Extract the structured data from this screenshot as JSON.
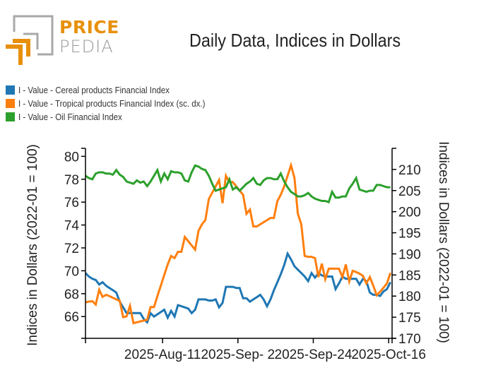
{
  "logo": {
    "line1": "PRICE",
    "line2": "PEDIA",
    "accent_color": "#e8900c",
    "gray_color": "#9a9a9a"
  },
  "title": "Daily Data, Indices in Dollars",
  "legend": [
    {
      "label": "I - Value - Cereal products Financial Index",
      "color": "#1f77b4"
    },
    {
      "label": "I - Value - Tropical products Financial Index (sc. dx.)",
      "color": "#ff7f0e"
    },
    {
      "label": "I - Value - Oil Financial Index",
      "color": "#2ca02c"
    }
  ],
  "chart_data": {
    "type": "line",
    "title": "Daily Data, Indices in Dollars",
    "ylabel": "Indices in Dollars (2022-01 = 100)",
    "y2label": "Indices in Dollars (2022-01 = 100)",
    "ylim": [
      64.1,
      80.7
    ],
    "y2lim": [
      170,
      215
    ],
    "yticks": [
      66,
      68,
      70,
      72,
      74,
      76,
      78,
      80
    ],
    "y2ticks": [
      170,
      175,
      180,
      185,
      190,
      195,
      200,
      205,
      210
    ],
    "xlim_days": [
      0,
      89.5
    ],
    "xticks": [
      {
        "day": 0,
        "label": ""
      },
      {
        "day": 22.5,
        "label": "2025-Aug-11"
      },
      {
        "day": 44.5,
        "label": "2025-Sep- 2"
      },
      {
        "day": 66.5,
        "label": "2025-Sep-24"
      },
      {
        "day": 88.5,
        "label": "2025-Oct-16"
      }
    ],
    "x_days": [
      0,
      1,
      2,
      3,
      4,
      5,
      6,
      7,
      8,
      9,
      10,
      11,
      12,
      13,
      14,
      15,
      16,
      17,
      18,
      19,
      20,
      21,
      22,
      23,
      24,
      25,
      26,
      27,
      28,
      29,
      30,
      31,
      32,
      33,
      34,
      35,
      36,
      37,
      38,
      39,
      40,
      41,
      42,
      43,
      44,
      45,
      46,
      47,
      48,
      49,
      50,
      51,
      52,
      53,
      54,
      55,
      56,
      57,
      58,
      59,
      60,
      61,
      62,
      63,
      64,
      65,
      66,
      67,
      68,
      69,
      70,
      71,
      72,
      73,
      74,
      75,
      76,
      77,
      78,
      79,
      80,
      81,
      82,
      83,
      84,
      85,
      86,
      87,
      88,
      89
    ],
    "series": [
      {
        "name": "I - Value - Cereal products Financial Index",
        "axis": "left",
        "values": [
          69.8,
          69.5,
          69.3,
          69.2,
          68.8,
          69.0,
          68.7,
          68.5,
          68.3,
          68.1,
          67.3,
          66.8,
          66.3,
          66.3,
          66.3,
          66.3,
          66.3,
          65.8,
          65.5,
          66.3,
          66.0,
          66.2,
          66.4,
          66.6,
          65.9,
          66.5,
          66.0,
          67.0,
          66.9,
          66.8,
          66.7,
          66.3,
          66.6,
          67.5,
          67.5,
          67.5,
          67.4,
          67.4,
          67.5,
          66.8,
          67.2,
          68.6,
          68.6,
          68.6,
          68.5,
          68.5,
          67.6,
          67.6,
          67.3,
          67.5,
          67.7,
          67.9,
          67.5,
          66.9,
          67.5,
          68.3,
          69.0,
          69.7,
          70.5,
          71.5,
          71.0,
          70.4,
          70.1,
          69.8,
          69.5,
          69.1,
          69.8,
          69.4,
          69.8,
          69.6,
          69.5,
          69.5,
          69.5,
          68.4,
          68.9,
          69.5,
          69.3,
          69.3,
          69.3,
          69.3,
          68.8,
          69.3,
          69.1,
          68.1,
          67.9,
          67.9,
          67.8,
          68.2,
          68.4,
          69.0
        ]
      },
      {
        "name": "I - Value - Tropical products Financial Index (sc. dx.)",
        "axis": "right",
        "values": [
          178.5,
          178.7,
          178.8,
          178.0,
          181.5,
          179.8,
          180.3,
          180.0,
          179.6,
          179.2,
          178.9,
          175.0,
          175.2,
          177.7,
          173.6,
          173.8,
          174.0,
          174.2,
          174.4,
          177.4,
          177.4,
          180.0,
          182.5,
          185.0,
          187.5,
          189.5,
          189.0,
          190.5,
          190.5,
          194.0,
          193.0,
          192.0,
          191.0,
          195.5,
          197.0,
          198.0,
          203.0,
          204.5,
          206.0,
          207.5,
          202.0,
          208.5,
          207.0,
          207.0,
          206.0,
          205.0,
          204.0,
          199.5,
          200.5,
          196.5,
          196.5,
          197.0,
          197.5,
          198.0,
          198.5,
          198.5,
          202.5,
          204.0,
          206.0,
          208.5,
          211.0,
          208.0,
          199.5,
          197.0,
          189.5,
          189.3,
          189.3,
          189.0,
          184.5,
          187.7,
          184.0,
          186.5,
          186.5,
          186.5,
          186.5,
          184.5,
          187.5,
          183.5,
          186.0,
          185.7,
          185.3,
          184.8,
          183.0,
          184.5,
          182.5,
          180.2,
          181.0,
          182.0,
          183.0,
          185.5
        ]
      },
      {
        "name": "I - Value - Oil Financial Index",
        "axis": "left",
        "values": [
          78.3,
          78.1,
          78.0,
          78.5,
          78.6,
          78.6,
          78.5,
          78.5,
          78.4,
          78.8,
          78.4,
          78.2,
          77.8,
          77.7,
          77.6,
          77.9,
          77.7,
          77.8,
          77.4,
          77.8,
          78.3,
          78.8,
          77.8,
          78.5,
          78.0,
          78.7,
          78.6,
          78.6,
          78.5,
          77.9,
          77.8,
          78.6,
          79.2,
          79.1,
          78.9,
          78.8,
          78.3,
          77.6,
          77.0,
          77.1,
          77.2,
          77.3,
          78.0,
          77.1,
          77.3,
          77.0,
          77.3,
          77.6,
          77.8,
          78.1,
          77.6,
          77.5,
          77.9,
          78.1,
          78.1,
          78.0,
          78.0,
          78.5,
          77.8,
          77.3,
          76.9,
          76.7,
          76.5,
          76.5,
          76.6,
          76.8,
          76.5,
          76.3,
          76.2,
          76.1,
          76.1,
          76.0,
          76.9,
          76.4,
          76.4,
          76.5,
          76.5,
          77.2,
          77.6,
          78.1,
          77.1,
          77.0,
          76.9,
          77.0,
          77.0,
          77.5,
          77.5,
          77.4,
          77.3,
          77.3
        ]
      }
    ]
  }
}
